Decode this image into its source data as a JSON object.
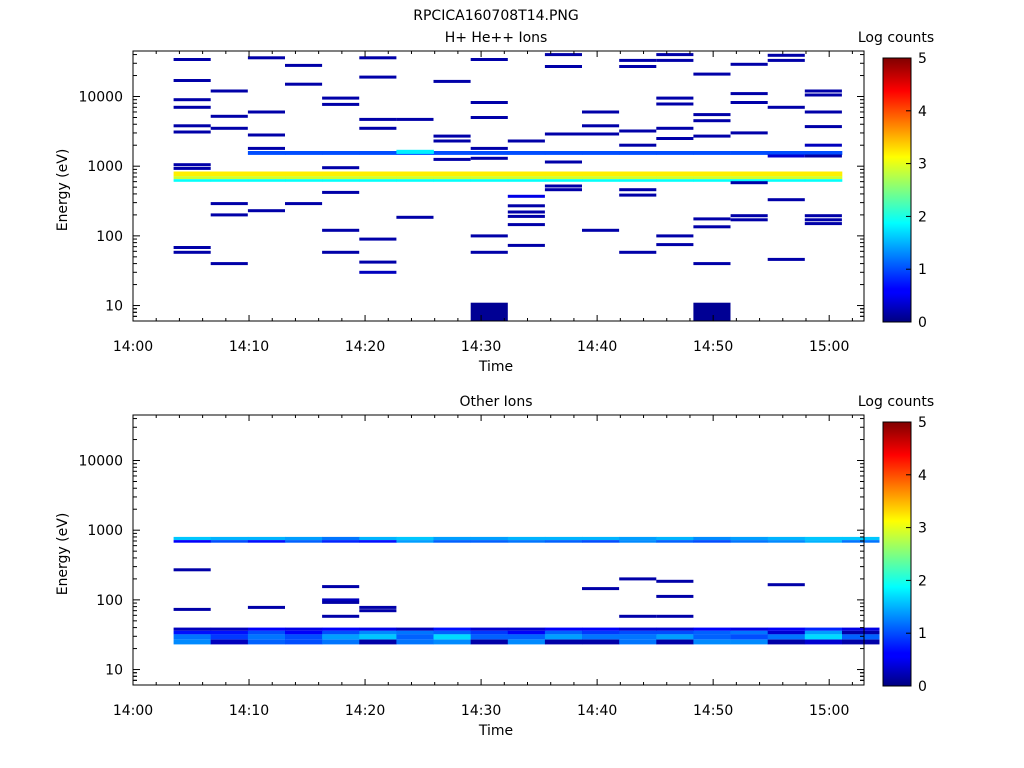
{
  "page_title": "RPCICA160708T14.PNG",
  "colors": {
    "low": "#000080",
    "high": "#800000"
  },
  "chart_data": [
    {
      "type": "heatmap",
      "title": "H+ He++ Ions",
      "xlabel": "Time",
      "ylabel": "Energy (eV)",
      "xlim_minutes": [
        0,
        63
      ],
      "ylim": [
        6,
        45000
      ],
      "yscale": "log",
      "xticks": [
        "14:00",
        "14:10",
        "14:20",
        "14:30",
        "14:40",
        "14:50",
        "15:00"
      ],
      "yticks": [
        "10",
        "100",
        "1000",
        "10000"
      ],
      "colorbar": {
        "label": "Log counts",
        "ticks": [
          "0",
          "1",
          "2",
          "3",
          "4",
          "5"
        ],
        "range": [
          0,
          5
        ]
      },
      "time_bins_minutes": [
        3.5,
        6.7,
        9.9,
        13.1,
        16.3,
        19.5,
        22.7,
        25.9,
        29.1,
        32.3,
        35.5,
        38.7,
        41.9,
        45.1,
        48.3,
        51.5,
        54.7,
        57.9,
        61.1
      ],
      "bands": [
        {
          "e_lo": 720,
          "e_hi": 840,
          "value": 3.2,
          "from": 0,
          "to": 18
        },
        {
          "e_lo": 650,
          "e_hi": 720,
          "value": 2.9,
          "from": 0,
          "to": 18
        },
        {
          "e_lo": 600,
          "e_hi": 650,
          "value": 1.9,
          "from": 0,
          "to": 18
        },
        {
          "e_lo": 1450,
          "e_hi": 1650,
          "value": 1.0,
          "from": 2,
          "to": 18
        },
        {
          "e_lo": 1500,
          "e_hi": 1720,
          "value": 1.8,
          "from": 6,
          "to": 7
        }
      ],
      "events": [
        {
          "t": 0,
          "e": 34000,
          "v": 0.2
        },
        {
          "t": 0,
          "e": 17000,
          "v": 0.2
        },
        {
          "t": 0,
          "e": 9000,
          "v": 0.2
        },
        {
          "t": 0,
          "e": 7000,
          "v": 0.2
        },
        {
          "t": 0,
          "e": 3800,
          "v": 0.2
        },
        {
          "t": 0,
          "e": 3100,
          "v": 0.2
        },
        {
          "t": 0,
          "e": 1050,
          "v": 0.2
        },
        {
          "t": 0,
          "e": 930,
          "v": 0.2
        },
        {
          "t": 0,
          "e": 68,
          "v": 0.2
        },
        {
          "t": 0,
          "e": 58,
          "v": 0.2
        },
        {
          "t": 1,
          "e": 12000,
          "v": 0.2
        },
        {
          "t": 1,
          "e": 5200,
          "v": 0.2
        },
        {
          "t": 1,
          "e": 3500,
          "v": 0.2
        },
        {
          "t": 1,
          "e": 290,
          "v": 0.2
        },
        {
          "t": 1,
          "e": 200,
          "v": 0.2
        },
        {
          "t": 1,
          "e": 40,
          "v": 0.2
        },
        {
          "t": 2,
          "e": 36000,
          "v": 0.2
        },
        {
          "t": 2,
          "e": 6000,
          "v": 0.2
        },
        {
          "t": 2,
          "e": 2800,
          "v": 0.2
        },
        {
          "t": 2,
          "e": 1800,
          "v": 0.2
        },
        {
          "t": 2,
          "e": 230,
          "v": 0.2
        },
        {
          "t": 3,
          "e": 28000,
          "v": 0.2
        },
        {
          "t": 3,
          "e": 15000,
          "v": 0.2
        },
        {
          "t": 3,
          "e": 290,
          "v": 0.2
        },
        {
          "t": 4,
          "e": 9500,
          "v": 0.2
        },
        {
          "t": 4,
          "e": 7700,
          "v": 0.2
        },
        {
          "t": 4,
          "e": 950,
          "v": 0.2
        },
        {
          "t": 4,
          "e": 420,
          "v": 0.2
        },
        {
          "t": 4,
          "e": 120,
          "v": 0.2
        },
        {
          "t": 4,
          "e": 58,
          "v": 0.2
        },
        {
          "t": 5,
          "e": 36000,
          "v": 0.2
        },
        {
          "t": 5,
          "e": 19000,
          "v": 0.2
        },
        {
          "t": 5,
          "e": 4700,
          "v": 0.2
        },
        {
          "t": 5,
          "e": 3500,
          "v": 0.2
        },
        {
          "t": 5,
          "e": 90,
          "v": 0.2
        },
        {
          "t": 5,
          "e": 42,
          "v": 0.2
        },
        {
          "t": 5,
          "e": 30,
          "v": 0.3
        },
        {
          "t": 6,
          "e": 4700,
          "v": 0.2
        },
        {
          "t": 6,
          "e": 185,
          "v": 0.2
        },
        {
          "t": 7,
          "e": 16500,
          "v": 0.2
        },
        {
          "t": 7,
          "e": 2700,
          "v": 0.2
        },
        {
          "t": 7,
          "e": 2300,
          "v": 0.2
        },
        {
          "t": 7,
          "e": 1250,
          "v": 0.2
        },
        {
          "t": 8,
          "e": 34000,
          "v": 0.2
        },
        {
          "t": 8,
          "e": 8200,
          "v": 0.2
        },
        {
          "t": 8,
          "e": 5000,
          "v": 0.2
        },
        {
          "t": 8,
          "e": 1800,
          "v": 0.2
        },
        {
          "t": 8,
          "e": 1300,
          "v": 0.2
        },
        {
          "t": 8,
          "e": 100,
          "v": 0.2
        },
        {
          "t": 8,
          "e": 58,
          "v": 0.2
        },
        {
          "t": 9,
          "e": 2300,
          "v": 0.2
        },
        {
          "t": 9,
          "e": 370,
          "v": 0.5
        },
        {
          "t": 9,
          "e": 270,
          "v": 0.2
        },
        {
          "t": 9,
          "e": 220,
          "v": 0.2
        },
        {
          "t": 9,
          "e": 190,
          "v": 0.2
        },
        {
          "t": 9,
          "e": 145,
          "v": 0.2
        },
        {
          "t": 9,
          "e": 73,
          "v": 0.2
        },
        {
          "t": 10,
          "e": 40000,
          "v": 0.2
        },
        {
          "t": 10,
          "e": 27000,
          "v": 0.2
        },
        {
          "t": 10,
          "e": 2900,
          "v": 0.2
        },
        {
          "t": 10,
          "e": 1150,
          "v": 0.2
        },
        {
          "t": 10,
          "e": 520,
          "v": 0.2
        },
        {
          "t": 10,
          "e": 460,
          "v": 0.2
        },
        {
          "t": 11,
          "e": 6000,
          "v": 0.2
        },
        {
          "t": 11,
          "e": 3800,
          "v": 0.2
        },
        {
          "t": 11,
          "e": 2900,
          "v": 0.2
        },
        {
          "t": 11,
          "e": 120,
          "v": 0.2
        },
        {
          "t": 12,
          "e": 33000,
          "v": 0.2
        },
        {
          "t": 12,
          "e": 27000,
          "v": 0.2
        },
        {
          "t": 12,
          "e": 3200,
          "v": 0.2
        },
        {
          "t": 12,
          "e": 2000,
          "v": 0.2
        },
        {
          "t": 12,
          "e": 460,
          "v": 0.2
        },
        {
          "t": 12,
          "e": 385,
          "v": 0.2
        },
        {
          "t": 12,
          "e": 58,
          "v": 0.2
        },
        {
          "t": 13,
          "e": 40000,
          "v": 0.2
        },
        {
          "t": 13,
          "e": 33000,
          "v": 0.2
        },
        {
          "t": 13,
          "e": 9500,
          "v": 0.2
        },
        {
          "t": 13,
          "e": 7800,
          "v": 0.2
        },
        {
          "t": 13,
          "e": 3500,
          "v": 0.2
        },
        {
          "t": 13,
          "e": 2500,
          "v": 0.2
        },
        {
          "t": 13,
          "e": 100,
          "v": 0.2
        },
        {
          "t": 13,
          "e": 75,
          "v": 0.2
        },
        {
          "t": 14,
          "e": 21000,
          "v": 0.2
        },
        {
          "t": 14,
          "e": 5500,
          "v": 0.2
        },
        {
          "t": 14,
          "e": 4500,
          "v": 0.2
        },
        {
          "t": 14,
          "e": 2700,
          "v": 0.2
        },
        {
          "t": 14,
          "e": 175,
          "v": 0.2
        },
        {
          "t": 14,
          "e": 135,
          "v": 0.2
        },
        {
          "t": 14,
          "e": 40,
          "v": 0.2
        },
        {
          "t": 15,
          "e": 29000,
          "v": 0.2
        },
        {
          "t": 15,
          "e": 11000,
          "v": 0.2
        },
        {
          "t": 15,
          "e": 8200,
          "v": 0.2
        },
        {
          "t": 15,
          "e": 3000,
          "v": 0.2
        },
        {
          "t": 15,
          "e": 580,
          "v": 0.2
        },
        {
          "t": 15,
          "e": 195,
          "v": 0.2
        },
        {
          "t": 15,
          "e": 170,
          "v": 0.2
        },
        {
          "t": 16,
          "e": 39000,
          "v": 0.2
        },
        {
          "t": 16,
          "e": 33000,
          "v": 0.2
        },
        {
          "t": 16,
          "e": 7000,
          "v": 0.2
        },
        {
          "t": 16,
          "e": 1400,
          "v": 0.4
        },
        {
          "t": 16,
          "e": 330,
          "v": 0.2
        },
        {
          "t": 16,
          "e": 46,
          "v": 0.2
        },
        {
          "t": 17,
          "e": 12000,
          "v": 0.2
        },
        {
          "t": 17,
          "e": 10500,
          "v": 0.2
        },
        {
          "t": 17,
          "e": 6000,
          "v": 0.2
        },
        {
          "t": 17,
          "e": 3700,
          "v": 0.2
        },
        {
          "t": 17,
          "e": 2000,
          "v": 0.3
        },
        {
          "t": 17,
          "e": 1400,
          "v": 0.2
        },
        {
          "t": 17,
          "e": 195,
          "v": 0.2
        },
        {
          "t": 17,
          "e": 170,
          "v": 0.2
        },
        {
          "t": 17,
          "e": 150,
          "v": 0.2
        }
      ],
      "blocks": [
        {
          "t_from": 29.1,
          "t_to": 32.3,
          "e_lo": 6,
          "e_hi": 11,
          "v": 0.1
        },
        {
          "t_from": 48.3,
          "t_to": 51.5,
          "e_lo": 6,
          "e_hi": 11,
          "v": 0.1
        }
      ]
    },
    {
      "type": "heatmap",
      "title": "Other Ions",
      "xlabel": "Time",
      "ylabel": "Energy (eV)",
      "xlim_minutes": [
        0,
        63
      ],
      "ylim": [
        6,
        45000
      ],
      "yscale": "log",
      "xticks": [
        "14:00",
        "14:10",
        "14:20",
        "14:30",
        "14:40",
        "14:50",
        "15:00"
      ],
      "yticks": [
        "10",
        "100",
        "1000",
        "10000"
      ],
      "colorbar": {
        "label": "Log counts",
        "ticks": [
          "0",
          "1",
          "2",
          "3",
          "4",
          "5"
        ],
        "range": [
          0,
          5
        ]
      },
      "time_bins_minutes": [
        3.5,
        6.7,
        9.9,
        13.1,
        16.3,
        19.5,
        22.7,
        25.9,
        29.1,
        32.3,
        35.5,
        38.7,
        41.9,
        45.1,
        48.3,
        51.5,
        54.7,
        57.9,
        61.1
      ],
      "columns": [
        {
          "v800": 1.6,
          "v700": 0.6,
          "v38": 0.3,
          "v34": 0.7,
          "v30": 1.2,
          "v25": 1.3
        },
        {
          "v800": 1.5,
          "v700": 1.0,
          "v38": 0.3,
          "v34": 0.7,
          "v30": 0.9,
          "v25": 0.3
        },
        {
          "v800": 1.5,
          "v700": 0.7,
          "v38": 0.6,
          "v34": 1.0,
          "v30": 1.2,
          "v25": 1.1
        },
        {
          "v800": 1.4,
          "v700": 1.1,
          "v38": 0.5,
          "v34": 0.6,
          "v30": 1.0,
          "v25": 1.0
        },
        {
          "v800": 1.2,
          "v700": 0.8,
          "v38": 0.6,
          "v34": 1.0,
          "v30": 1.4,
          "v25": 1.2
        },
        {
          "v800": 1.5,
          "v700": 0.7,
          "v38": 0.5,
          "v34": 1.3,
          "v30": 1.6,
          "v25": 0.2
        },
        {
          "v800": 1.6,
          "v700": 1.4,
          "v38": 0.3,
          "v34": 1.2,
          "v30": 1.1,
          "v25": 1.2
        },
        {
          "v800": 1.4,
          "v700": 1.1,
          "v38": 0.7,
          "v34": 1.1,
          "v30": 1.7,
          "v25": 1.3
        },
        {
          "v800": 1.4,
          "v700": 1.1,
          "v38": 0.4,
          "v34": 0.9,
          "v30": 1.1,
          "v25": 0.2
        },
        {
          "v800": 1.5,
          "v700": 1.2,
          "v38": 0.4,
          "v34": 0.6,
          "v30": 1.1,
          "v25": 1.3
        },
        {
          "v800": 1.5,
          "v700": 1.1,
          "v38": 0.6,
          "v34": 1.1,
          "v30": 1.4,
          "v25": 0.2
        },
        {
          "v800": 1.5,
          "v700": 1.0,
          "v38": 0.6,
          "v34": 0.9,
          "v30": 1.2,
          "v25": 0.2
        },
        {
          "v800": 1.4,
          "v700": 1.3,
          "v38": 0.4,
          "v34": 1.0,
          "v30": 1.2,
          "v25": 1.2
        },
        {
          "v800": 1.5,
          "v700": 1.1,
          "v38": 0.4,
          "v34": 1.0,
          "v30": 1.4,
          "v25": 0.2
        },
        {
          "v800": 1.3,
          "v700": 1.0,
          "v38": 0.6,
          "v34": 1.1,
          "v30": 1.1,
          "v25": 1.3
        },
        {
          "v800": 1.4,
          "v700": 1.2,
          "v38": 0.5,
          "v34": 1.2,
          "v30": 1.0,
          "v25": 1.3
        },
        {
          "v800": 1.5,
          "v700": 1.3,
          "v38": 0.6,
          "v34": 0.4,
          "v30": 1.2,
          "v25": 0.2
        },
        {
          "v800": 1.6,
          "v700": 1.5,
          "v38": 0.8,
          "v34": 1.4,
          "v30": 1.7,
          "v25": 0.4
        },
        {
          "v800": 1.6,
          "v700": 1.2,
          "v38": 0.5,
          "v34": 0.2,
          "v30": 1.1,
          "v25": 0.2
        }
      ],
      "events": [
        {
          "t": 0,
          "e": 270,
          "v": 0.2
        },
        {
          "t": 0,
          "e": 73,
          "v": 0.2
        },
        {
          "t": 2,
          "e": 78,
          "v": 0.2
        },
        {
          "t": 4,
          "e": 155,
          "v": 0.2
        },
        {
          "t": 4,
          "e": 100,
          "v": 0.3
        },
        {
          "t": 4,
          "e": 92,
          "v": 0.2
        },
        {
          "t": 4,
          "e": 58,
          "v": 0.2
        },
        {
          "t": 5,
          "e": 78,
          "v": 0.2
        },
        {
          "t": 5,
          "e": 70,
          "v": 0.2
        },
        {
          "t": 11,
          "e": 145,
          "v": 0.2
        },
        {
          "t": 12,
          "e": 200,
          "v": 0.2
        },
        {
          "t": 12,
          "e": 58,
          "v": 0.2
        },
        {
          "t": 13,
          "e": 185,
          "v": 0.2
        },
        {
          "t": 13,
          "e": 112,
          "v": 0.2
        },
        {
          "t": 13,
          "e": 58,
          "v": 0.2
        },
        {
          "t": 16,
          "e": 165,
          "v": 0.2
        }
      ]
    }
  ]
}
